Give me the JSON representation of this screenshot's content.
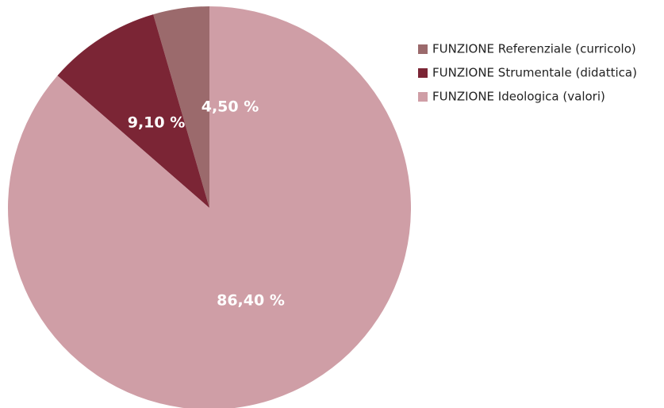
{
  "chart_data": {
    "type": "pie",
    "categories": [
      "FUNZIONE Referenziale (curricolo)",
      "FUNZIONE Strumentale (didattica)",
      "FUNZIONE Ideologica (valori)"
    ],
    "values": [
      4.5,
      9.1,
      86.4
    ],
    "value_labels": [
      "4,50 %",
      "9,10 %",
      "86,40 %"
    ],
    "colors": [
      "#9b6a6c",
      "#7b2535",
      "#cf9ea6"
    ],
    "direction": "counterclockwise",
    "legend": "top-right"
  }
}
